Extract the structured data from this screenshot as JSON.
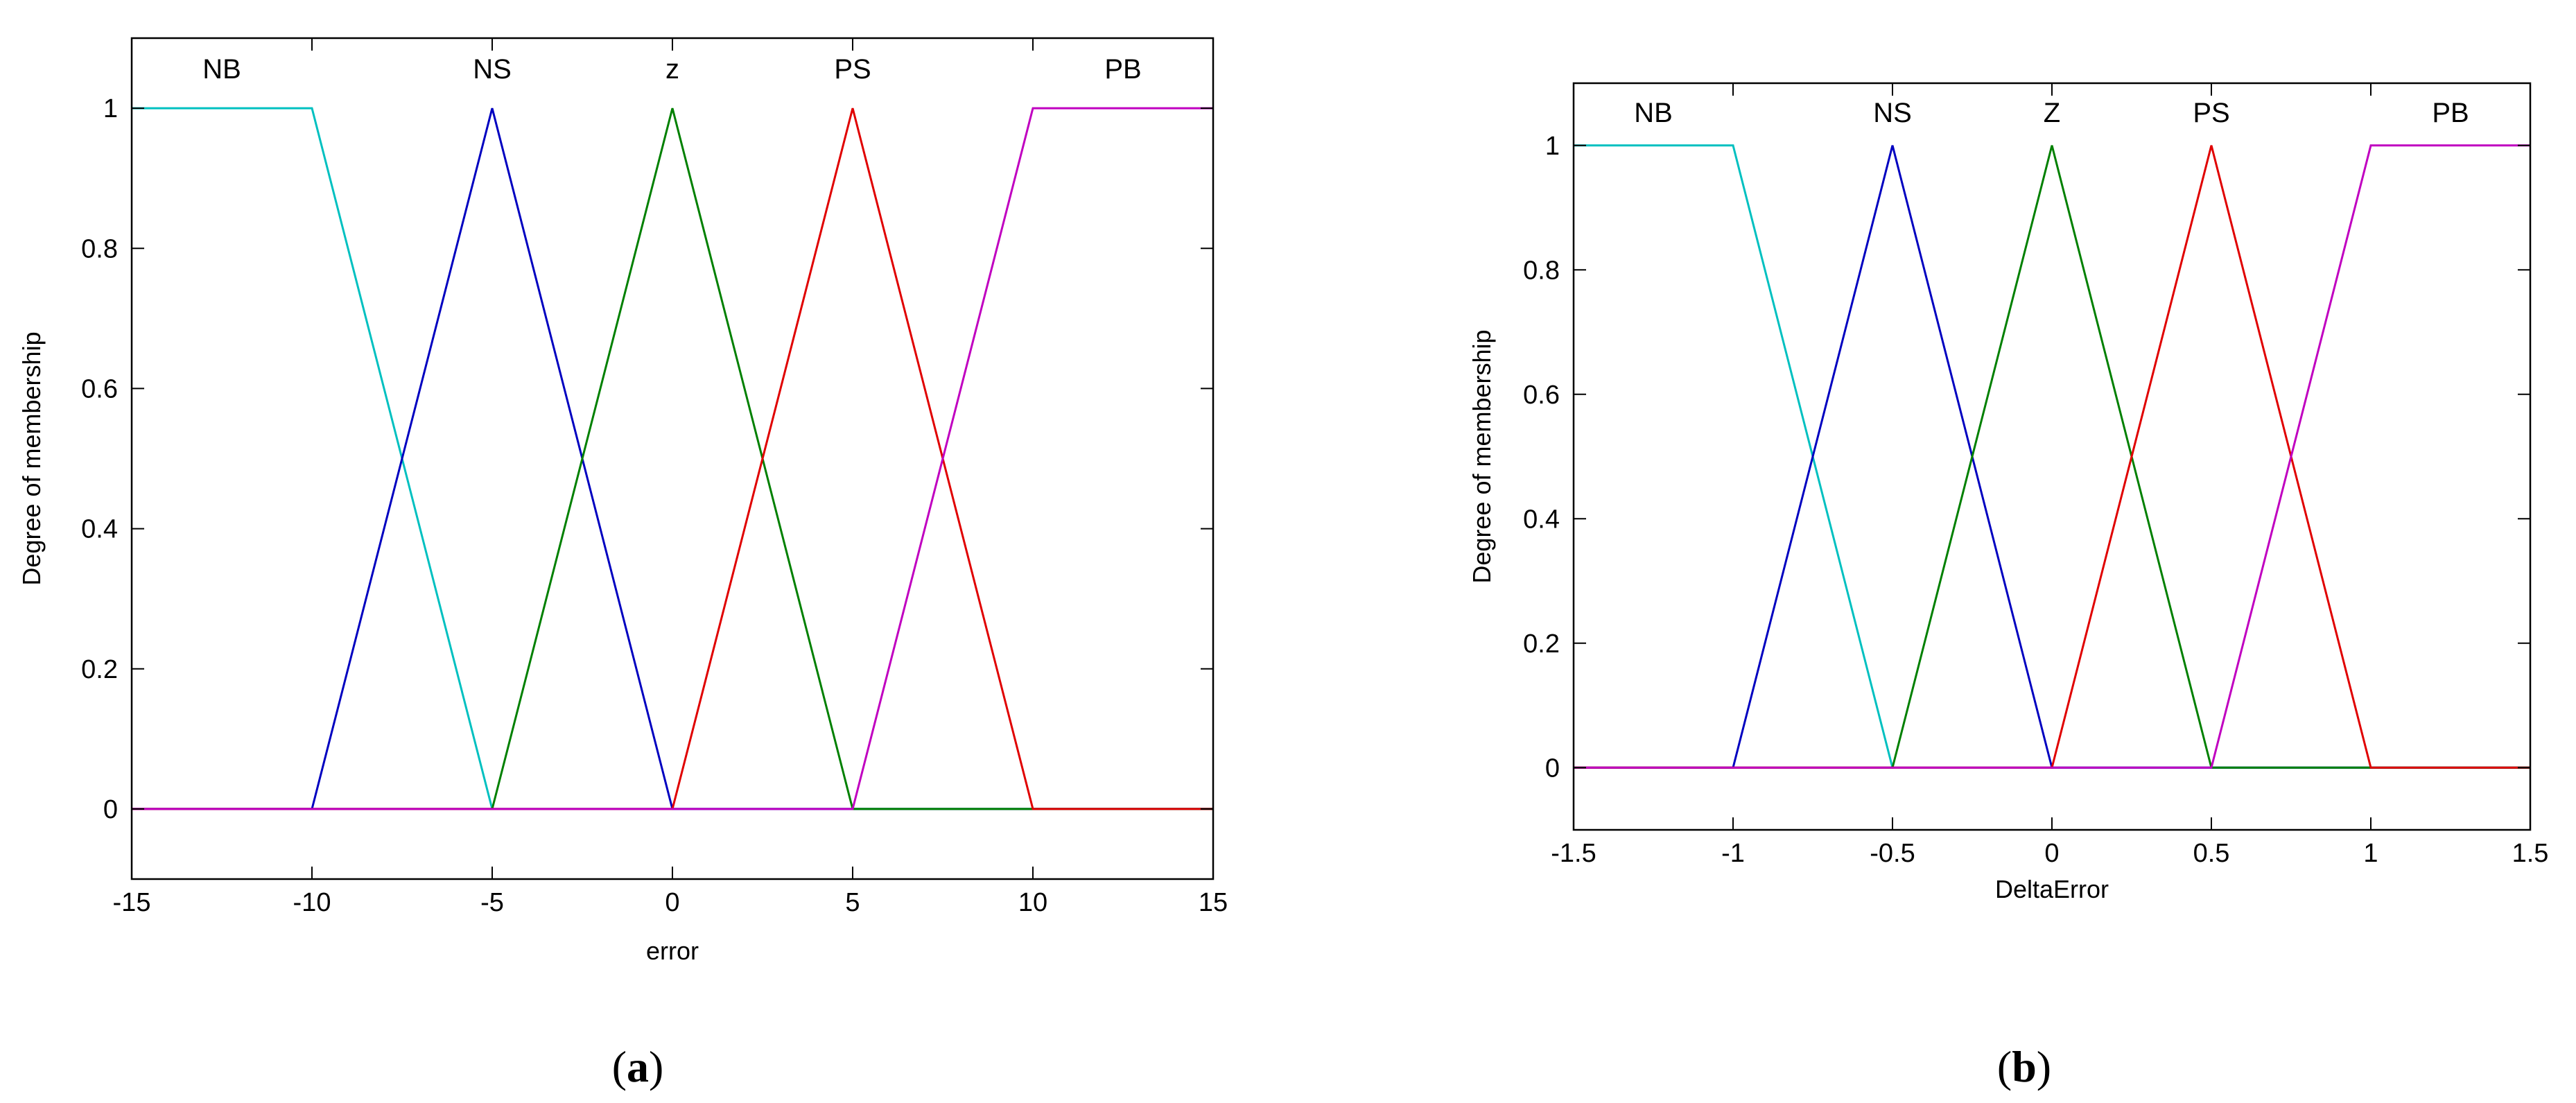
{
  "chart_data": [
    {
      "type": "line",
      "panel_label": "(a)",
      "caption": {
        "open": "(",
        "letter": "a",
        "close": ")"
      },
      "xlabel": "error",
      "ylabel": "Degree of membership",
      "xlim": [
        -15,
        15
      ],
      "ylim": [
        -0.1,
        1.1
      ],
      "xticks": [
        -15,
        -10,
        -5,
        0,
        5,
        10,
        15
      ],
      "yticks": [
        0,
        0.2,
        0.4,
        0.6,
        0.8,
        1
      ],
      "grid": false,
      "series": [
        {
          "name": "NB",
          "color": "#00c0c0",
          "label_x": -12.5,
          "x": [
            -15,
            -10,
            -5,
            15
          ],
          "y": [
            1,
            1,
            0,
            0
          ]
        },
        {
          "name": "NS",
          "color": "#0000c0",
          "label_x": -5,
          "x": [
            -15,
            -10,
            -5,
            0,
            15
          ],
          "y": [
            0,
            0,
            1,
            0,
            0
          ]
        },
        {
          "name": "z",
          "color": "#008000",
          "label_x": 0,
          "x": [
            -15,
            -5,
            0,
            5,
            15
          ],
          "y": [
            0,
            0,
            1,
            0,
            0
          ]
        },
        {
          "name": "PS",
          "color": "#e00000",
          "label_x": 5,
          "x": [
            -15,
            0,
            5,
            10,
            15
          ],
          "y": [
            0,
            0,
            1,
            0,
            0
          ]
        },
        {
          "name": "PB",
          "color": "#c000c0",
          "label_x": 12.5,
          "x": [
            -15,
            5,
            10,
            15
          ],
          "y": [
            0,
            0,
            1,
            1
          ]
        }
      ]
    },
    {
      "type": "line",
      "panel_label": "(b)",
      "caption": {
        "open": "(",
        "letter": "b",
        "close": ")"
      },
      "xlabel": "DeltaError",
      "ylabel": "Degree of membership",
      "xlim": [
        -1.5,
        1.5
      ],
      "ylim": [
        -0.1,
        1.1
      ],
      "xticks": [
        -1.5,
        -1,
        -0.5,
        0,
        0.5,
        1,
        1.5
      ],
      "yticks": [
        0,
        0.2,
        0.4,
        0.6,
        0.8,
        1
      ],
      "grid": false,
      "series": [
        {
          "name": "NB",
          "color": "#00c0c0",
          "label_x": -1.25,
          "x": [
            -1.5,
            -1,
            -0.5,
            1.5
          ],
          "y": [
            1,
            1,
            0,
            0
          ]
        },
        {
          "name": "NS",
          "color": "#0000c0",
          "label_x": -0.5,
          "x": [
            -1.5,
            -1,
            -0.5,
            0,
            1.5
          ],
          "y": [
            0,
            0,
            1,
            0,
            0
          ]
        },
        {
          "name": "Z",
          "color": "#008000",
          "label_x": 0,
          "x": [
            -1.5,
            -0.5,
            0,
            0.5,
            1.5
          ],
          "y": [
            0,
            0,
            1,
            0,
            0
          ]
        },
        {
          "name": "PS",
          "color": "#e00000",
          "label_x": 0.5,
          "x": [
            -1.5,
            0,
            0.5,
            1,
            1.5
          ],
          "y": [
            0,
            0,
            1,
            0,
            0
          ]
        },
        {
          "name": "PB",
          "color": "#c000c0",
          "label_x": 1.25,
          "x": [
            -1.5,
            0.5,
            1,
            1.5
          ],
          "y": [
            0,
            0,
            1,
            1
          ]
        }
      ]
    }
  ]
}
